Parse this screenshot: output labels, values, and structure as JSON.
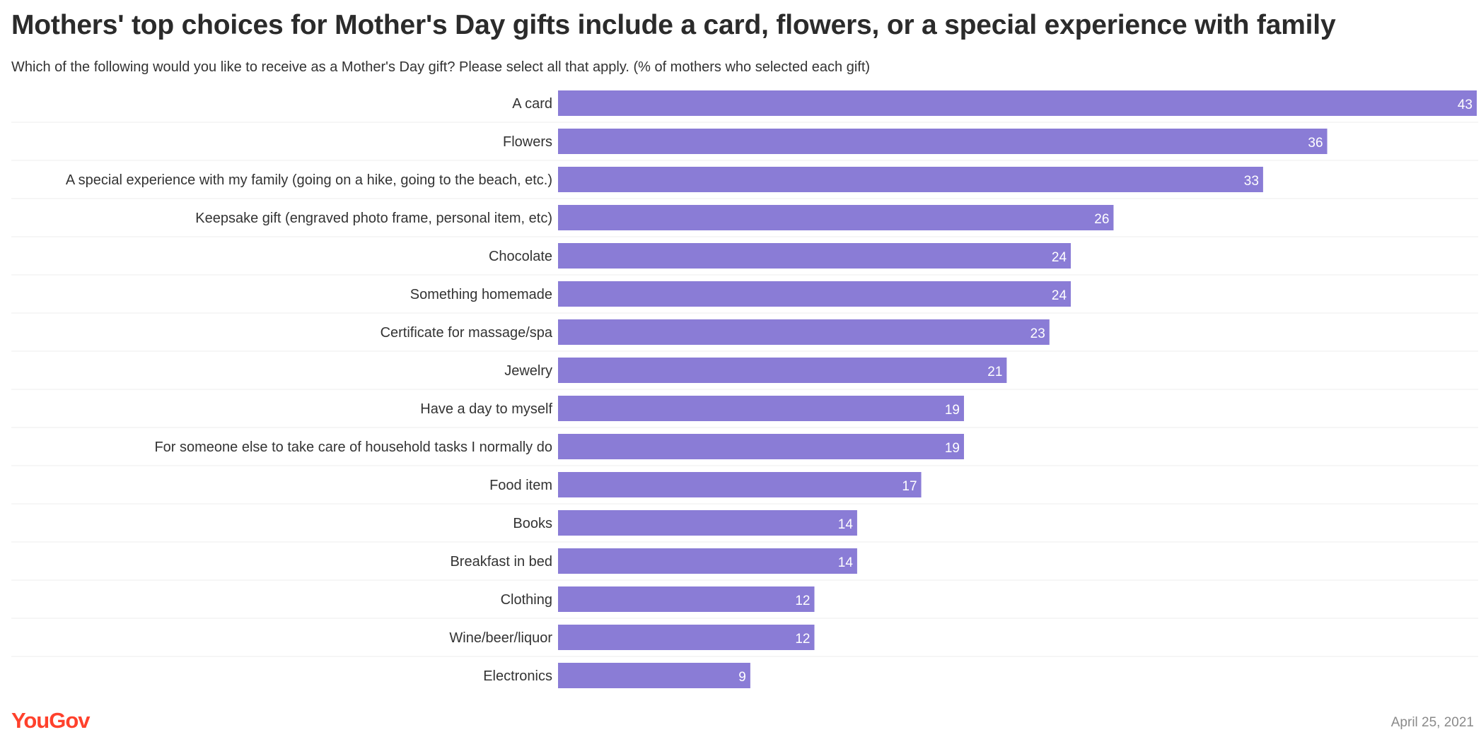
{
  "title": "Mothers' top choices for Mother's Day gifts include a card, flowers, or a special experience with family",
  "subtitle": "Which of the following would you like to receive as a Mother's Day gift? Please select all that apply. (% of mothers who selected each gift)",
  "brand": "YouGov",
  "date": "April 25, 2021",
  "colors": {
    "bar": "#8a7cd6",
    "label_inside": "#ffffff",
    "text": "#333333",
    "divider": "#ececec"
  },
  "chart_data": {
    "type": "bar",
    "orientation": "horizontal",
    "title": "Mothers' top choices for Mother's Day gifts include a card, flowers, or a special experience with family",
    "xlabel": "",
    "ylabel": "",
    "xlim": [
      0,
      43
    ],
    "grid": false,
    "categories": [
      "A card",
      "Flowers",
      "A special experience with my family (going on a hike, going to the beach, etc.)",
      "Keepsake gift (engraved photo frame, personal item, etc)",
      "Chocolate",
      "Something homemade",
      "Certificate for massage/spa",
      "Jewelry",
      "Have a day to myself",
      "For someone else to take care of household tasks I normally do",
      "Food item",
      "Books",
      "Breakfast in bed",
      "Clothing",
      "Wine/beer/liquor",
      "Electronics"
    ],
    "values": [
      43,
      36,
      33,
      26,
      24,
      24,
      23,
      21,
      19,
      19,
      17,
      14,
      14,
      12,
      12,
      9
    ]
  }
}
